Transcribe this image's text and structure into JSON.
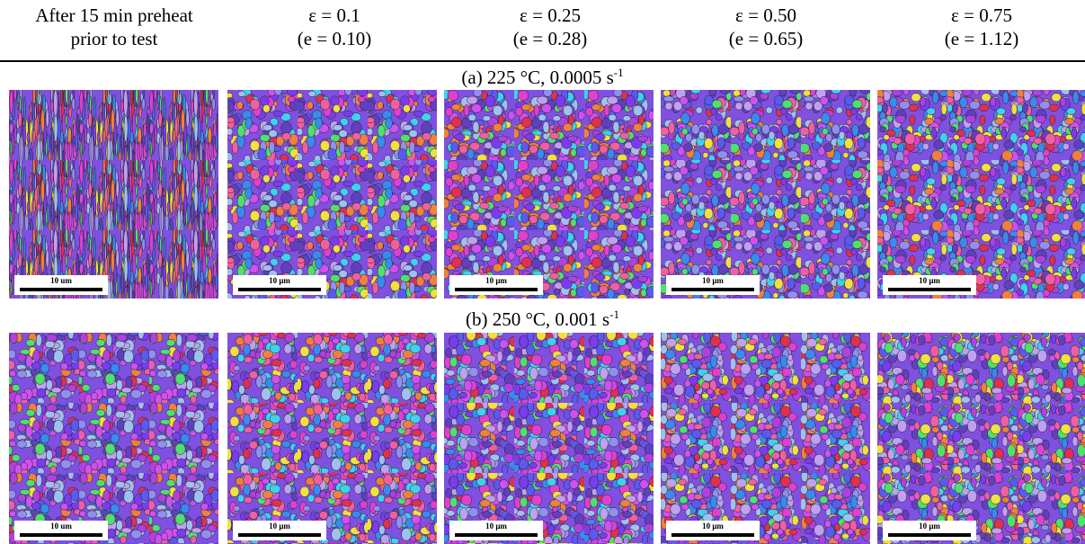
{
  "header": {
    "columns": [
      {
        "line1": "After 15 min preheat",
        "line2": "prior to test"
      },
      {
        "line1": "ε = 0.1",
        "line2": "(e = 0.10)"
      },
      {
        "line1": "ε = 0.25",
        "line2": "(e = 0.28)"
      },
      {
        "line1": "ε = 0.50",
        "line2": "(e = 0.65)"
      },
      {
        "line1": "ε = 0.75",
        "line2": "(e = 1.12)"
      }
    ]
  },
  "rows": [
    {
      "label": "(a) 225 °C, 0.0005 s",
      "label_exponent": "-1",
      "scale_bars": [
        "10 um",
        "10 μm",
        "10 μm",
        "10 μm",
        "10 μm"
      ]
    },
    {
      "label": "(b) 250 °C, 0.001 s",
      "label_exponent": "-1",
      "scale_bars": [
        "10 um",
        "10 μm",
        "10 μm",
        "10 μm",
        "10 μm"
      ]
    }
  ]
}
